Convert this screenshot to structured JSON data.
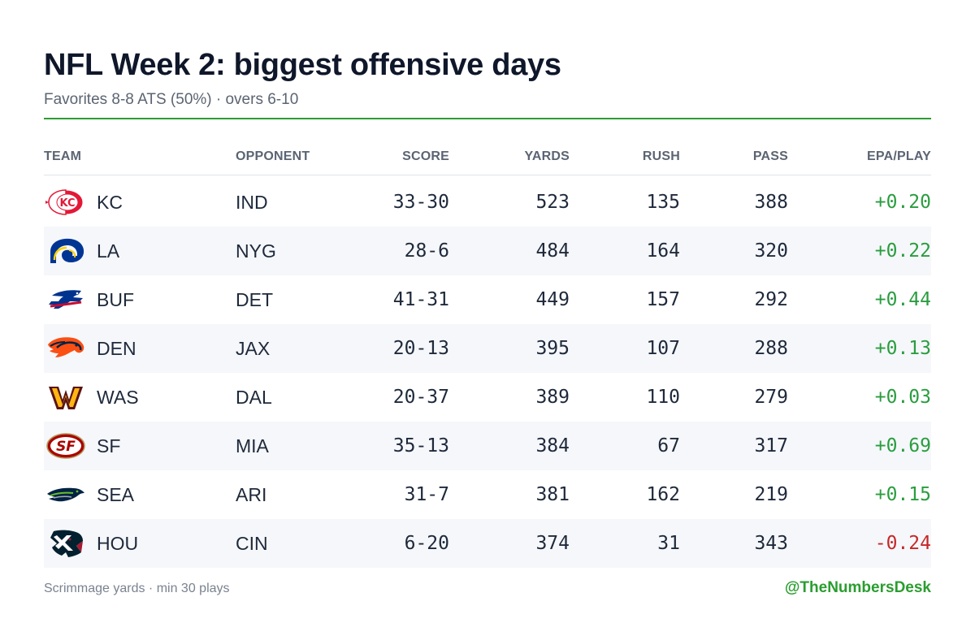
{
  "title": "NFL Week 2: biggest offensive days",
  "subtitle": "Favorites 8-8 ATS (50%) · overs 6-10",
  "colors": {
    "accent": "#2a9d2f",
    "positive": "#2a9d3f",
    "negative": "#c62828"
  },
  "columns": {
    "team": "TEAM",
    "opponent": "OPPONENT",
    "score": "SCORE",
    "yards": "YARDS",
    "rush": "RUSH",
    "pass": "PASS",
    "epa": "EPA/PLAY"
  },
  "rows": [
    {
      "logo": "chiefs-logo",
      "team": "KC",
      "opponent": "IND",
      "score": "33-30",
      "yards": "523",
      "rush": "135",
      "pass": "388",
      "epa": "+0.20",
      "epa_sign": "pos"
    },
    {
      "logo": "rams-logo",
      "team": "LA",
      "opponent": "NYG",
      "score": "28-6",
      "yards": "484",
      "rush": "164",
      "pass": "320",
      "epa": "+0.22",
      "epa_sign": "pos"
    },
    {
      "logo": "bills-logo",
      "team": "BUF",
      "opponent": "DET",
      "score": "41-31",
      "yards": "449",
      "rush": "157",
      "pass": "292",
      "epa": "+0.44",
      "epa_sign": "pos"
    },
    {
      "logo": "broncos-logo",
      "team": "DEN",
      "opponent": "JAX",
      "score": "20-13",
      "yards": "395",
      "rush": "107",
      "pass": "288",
      "epa": "+0.13",
      "epa_sign": "pos"
    },
    {
      "logo": "commanders-logo",
      "team": "WAS",
      "opponent": "DAL",
      "score": "20-37",
      "yards": "389",
      "rush": "110",
      "pass": "279",
      "epa": "+0.03",
      "epa_sign": "pos"
    },
    {
      "logo": "49ers-logo",
      "team": "SF",
      "opponent": "MIA",
      "score": "35-13",
      "yards": "384",
      "rush": "67",
      "pass": "317",
      "epa": "+0.69",
      "epa_sign": "pos"
    },
    {
      "logo": "seahawks-logo",
      "team": "SEA",
      "opponent": "ARI",
      "score": "31-7",
      "yards": "381",
      "rush": "162",
      "pass": "219",
      "epa": "+0.15",
      "epa_sign": "pos"
    },
    {
      "logo": "texans-logo",
      "team": "HOU",
      "opponent": "CIN",
      "score": "6-20",
      "yards": "374",
      "rush": "31",
      "pass": "343",
      "epa": "-0.24",
      "epa_sign": "neg"
    }
  ],
  "footer": {
    "note": "Scrimmage yards · min 30 plays",
    "handle": "@TheNumbersDesk"
  }
}
